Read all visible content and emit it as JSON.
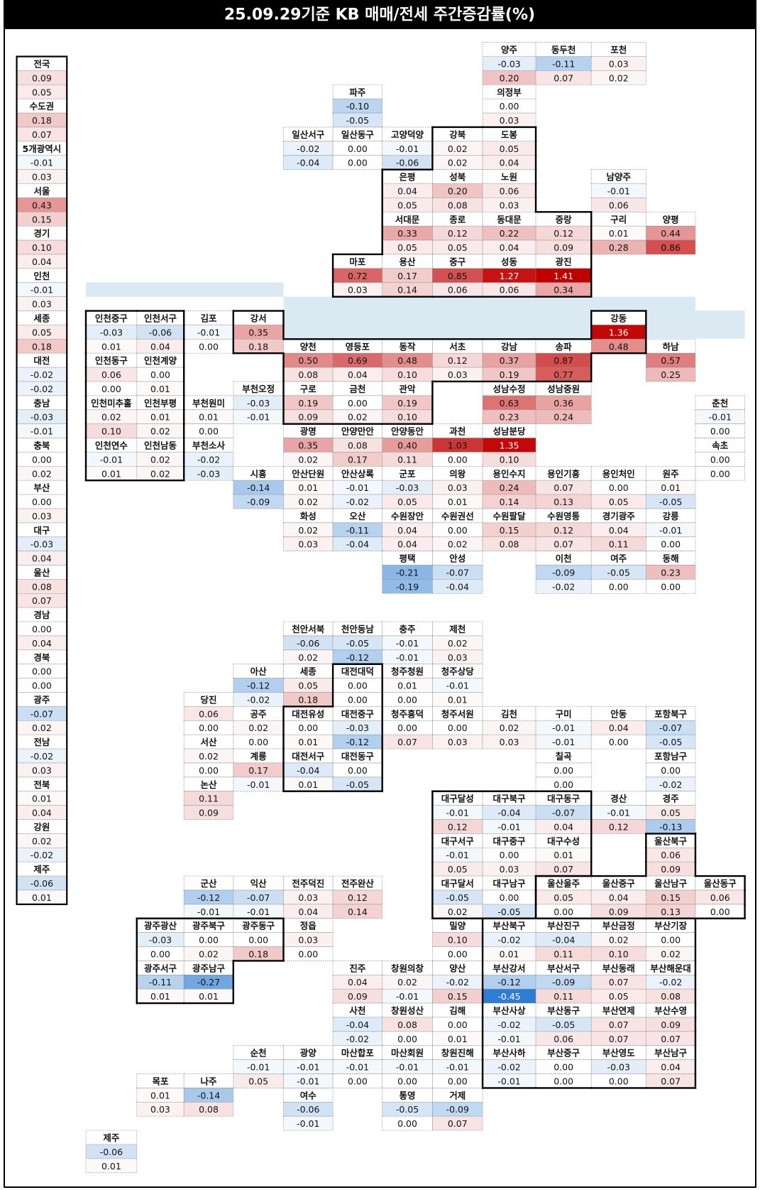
{
  "header": {
    "title": "25.09.29기준 KB 매매/전세 주간증감률(%)"
  },
  "summary": [
    [
      "전국",
      "0.09",
      "0.05"
    ],
    [
      "수도권",
      "0.18",
      "0.07"
    ],
    [
      "5개광역시",
      "-0.01",
      "0.03"
    ],
    [
      "서울",
      "0.43",
      "0.15"
    ],
    [
      "경기",
      "0.10",
      "0.04"
    ],
    [
      "인천",
      "-0.01",
      "0.03"
    ],
    [
      "세종",
      "0.05",
      "0.18"
    ],
    [
      "대전",
      "-0.02",
      "-0.02"
    ],
    [
      "충남",
      "-0.03",
      "-0.01"
    ],
    [
      "충북",
      "0.00",
      "0.02"
    ],
    [
      "부산",
      "0.00",
      "0.03"
    ],
    [
      "대구",
      "-0.03",
      "0.04"
    ],
    [
      "울산",
      "0.08",
      "0.07"
    ],
    [
      "경남",
      "0.00",
      "0.04"
    ],
    [
      "경북",
      "0.00",
      "0.00"
    ],
    [
      "광주",
      "-0.07",
      "0.02"
    ],
    [
      "전남",
      "-0.02",
      "0.03"
    ],
    [
      "전북",
      "0.01",
      "0.04"
    ],
    [
      "강원",
      "0.02",
      "-0.02"
    ],
    [
      "제주",
      "-0.06",
      "0.01"
    ]
  ],
  "regions": [
    [
      "양주",
      "-0.03",
      "0.20"
    ],
    [
      "동두천",
      "-0.11",
      "0.07"
    ],
    [
      "포천",
      "0.03",
      "0.02"
    ],
    [
      "파주",
      "-0.10",
      "-0.05"
    ],
    [
      "의정부",
      "0.00",
      "0.03"
    ],
    [
      "일산서구",
      "-0.02",
      "-0.04"
    ],
    [
      "일산동구",
      "0.00",
      "0.00"
    ],
    [
      "고양덕양",
      "-0.01",
      "-0.06"
    ],
    [
      "강북",
      "0.02",
      "0.02"
    ],
    [
      "도봉",
      "0.05",
      "0.04"
    ],
    [
      "은평",
      "0.04",
      "0.05"
    ],
    [
      "성북",
      "0.20",
      "0.08"
    ],
    [
      "노원",
      "0.06",
      "0.03"
    ],
    [
      "남양주",
      "-0.01",
      "0.06"
    ],
    [
      "서대문",
      "0.33",
      "0.05"
    ],
    [
      "종로",
      "0.12",
      "0.05"
    ],
    [
      "동대문",
      "0.22",
      "0.04"
    ],
    [
      "중랑",
      "0.12",
      "0.09"
    ],
    [
      "구리",
      "0.01",
      "0.28"
    ],
    [
      "양평",
      "0.44",
      "0.86"
    ],
    [
      "마포",
      "0.72",
      "0.03"
    ],
    [
      "용산",
      "0.17",
      "0.14"
    ],
    [
      "중구",
      "0.85",
      "0.06"
    ],
    [
      "성동",
      "1.27",
      "0.06"
    ],
    [
      "광진",
      "1.41",
      "0.34"
    ],
    [
      "인천중구",
      "-0.03",
      "0.01"
    ],
    [
      "인천서구",
      "-0.06",
      "0.04"
    ],
    [
      "김포",
      "-0.01",
      "0.00"
    ],
    [
      "강서",
      "0.35",
      "0.18"
    ],
    [
      "강동",
      "1.36",
      "0.48"
    ],
    [
      "양천",
      "0.50",
      "0.08"
    ],
    [
      "영등포",
      "0.69",
      "0.04"
    ],
    [
      "동작",
      "0.48",
      "0.10"
    ],
    [
      "서초",
      "0.12",
      "0.03"
    ],
    [
      "강남",
      "0.37",
      "0.19"
    ],
    [
      "송파",
      "0.87",
      "0.77"
    ],
    [
      "하남",
      "0.57",
      "0.25"
    ],
    [
      "인천동구",
      "0.06",
      "0.00"
    ],
    [
      "인천계양",
      "0.00",
      "0.01"
    ],
    [
      "부천오정",
      "-0.03",
      "-0.01"
    ],
    [
      "구로",
      "0.19",
      "0.09"
    ],
    [
      "금천",
      "0.00",
      "0.02"
    ],
    [
      "관악",
      "0.19",
      "0.10"
    ],
    [
      "성남수정",
      "0.63",
      "0.23"
    ],
    [
      "성남중원",
      "0.36",
      "0.24"
    ],
    [
      "인천미추홀",
      "0.02",
      "0.10"
    ],
    [
      "인천부평",
      "0.01",
      "0.02"
    ],
    [
      "부천원미",
      "0.01",
      "0.00"
    ],
    [
      "춘천",
      "-0.01",
      "0.00"
    ],
    [
      "광명",
      "0.35",
      "0.02"
    ],
    [
      "안양만안",
      "0.08",
      "0.17"
    ],
    [
      "안양동안",
      "0.40",
      "0.11"
    ],
    [
      "과천",
      "1.03",
      "0.00"
    ],
    [
      "성남분당",
      "1.35",
      "0.10"
    ],
    [
      "인천연수",
      "-0.01",
      "0.01"
    ],
    [
      "인천남동",
      "0.02",
      "0.02"
    ],
    [
      "부천소사",
      "-0.02",
      "-0.03"
    ],
    [
      "속초",
      "0.00",
      "0.00"
    ],
    [
      "시흥",
      "-0.14",
      "-0.09"
    ],
    [
      "안산단원",
      "0.01",
      "0.02"
    ],
    [
      "안산상록",
      "-0.01",
      "-0.02"
    ],
    [
      "군포",
      "-0.03",
      "0.05"
    ],
    [
      "의왕",
      "0.03",
      "0.01"
    ],
    [
      "용인수지",
      "0.24",
      "0.14"
    ],
    [
      "용인기흥",
      "0.07",
      "0.13"
    ],
    [
      "용인처인",
      "0.00",
      "0.05"
    ],
    [
      "원주",
      "0.01",
      "-0.05"
    ],
    [
      "화성",
      "0.02",
      "0.03"
    ],
    [
      "오산",
      "-0.11",
      "-0.04"
    ],
    [
      "수원장안",
      "0.04",
      "0.04"
    ],
    [
      "수원권선",
      "0.00",
      "0.02"
    ],
    [
      "수원팔달",
      "0.15",
      "0.08"
    ],
    [
      "수원영통",
      "0.12",
      "0.07"
    ],
    [
      "경기광주",
      "0.04",
      "0.11"
    ],
    [
      "강릉",
      "-0.01",
      "0.00"
    ],
    [
      "평택",
      "-0.21",
      "-0.19"
    ],
    [
      "안성",
      "-0.07",
      "-0.04"
    ],
    [
      "이천",
      "-0.09",
      "-0.02"
    ],
    [
      "여주",
      "-0.05",
      "0.00"
    ],
    [
      "동해",
      "0.23",
      "0.00"
    ],
    [
      "천안서북",
      "-0.06",
      "0.02"
    ],
    [
      "천안동남",
      "-0.05",
      "-0.12"
    ],
    [
      "충주",
      "-0.01",
      "-0.01"
    ],
    [
      "제천",
      "0.02",
      "0.03"
    ],
    [
      "아산",
      "-0.12",
      "-0.02"
    ],
    [
      "세종",
      "0.05",
      "0.18"
    ],
    [
      "대전대덕",
      "0.00",
      "0.00"
    ],
    [
      "청주청원",
      "0.01",
      "0.00"
    ],
    [
      "청주상당",
      "-0.01",
      "0.01"
    ],
    [
      "당진",
      "0.06",
      "0.00"
    ],
    [
      "공주",
      "0.02",
      "0.00"
    ],
    [
      "대전유성",
      "0.00",
      "0.01"
    ],
    [
      "대전중구",
      "-0.03",
      "-0.12"
    ],
    [
      "청주흥덕",
      "0.00",
      "0.07"
    ],
    [
      "청주서원",
      "0.00",
      "0.03"
    ],
    [
      "김천",
      "0.02",
      "0.03"
    ],
    [
      "구미",
      "-0.01",
      "-0.01"
    ],
    [
      "안동",
      "0.04",
      "0.00"
    ],
    [
      "포항북구",
      "-0.07",
      "-0.05"
    ],
    [
      "서산",
      "0.02",
      "0.00"
    ],
    [
      "계룡",
      "0.17",
      "-0.01"
    ],
    [
      "대전서구",
      "-0.04",
      "0.01"
    ],
    [
      "대전동구",
      "0.00",
      "-0.05"
    ],
    [
      "칠곡",
      "0.00",
      "0.00"
    ],
    [
      "포항남구",
      "0.00",
      "-0.02"
    ],
    [
      "논산",
      "0.11",
      "0.09"
    ],
    [
      "대구달성",
      "-0.01",
      "0.12"
    ],
    [
      "대구북구",
      "-0.04",
      "-0.01"
    ],
    [
      "대구동구",
      "-0.07",
      "0.04"
    ],
    [
      "경산",
      "-0.01",
      "0.12"
    ],
    [
      "경주",
      "0.05",
      "-0.13"
    ],
    [
      "대구서구",
      "-0.01",
      "0.05"
    ],
    [
      "대구중구",
      "0.00",
      "0.03"
    ],
    [
      "대구수성",
      "0.01",
      "0.07"
    ],
    [
      "울산북구",
      "0.06",
      "0.09"
    ],
    [
      "군산",
      "-0.12",
      "-0.01"
    ],
    [
      "익산",
      "-0.07",
      "-0.01"
    ],
    [
      "전주덕진",
      "0.03",
      "0.04"
    ],
    [
      "전주완산",
      "0.12",
      "0.14"
    ],
    [
      "대구달서",
      "-0.05",
      "0.02"
    ],
    [
      "대구남구",
      "0.00",
      "-0.05"
    ],
    [
      "울산울주",
      "0.05",
      "0.00"
    ],
    [
      "울산중구",
      "0.04",
      "0.09"
    ],
    [
      "울산남구",
      "0.15",
      "0.13"
    ],
    [
      "울산동구",
      "0.06",
      "0.00"
    ],
    [
      "광주광산",
      "-0.03",
      "0.00"
    ],
    [
      "광주북구",
      "0.00",
      "0.02"
    ],
    [
      "광주동구",
      "0.00",
      "0.18"
    ],
    [
      "정읍",
      "0.03",
      "0.00"
    ],
    [
      "밀양",
      "0.10",
      "0.00"
    ],
    [
      "부산북구",
      "-0.02",
      "0.01"
    ],
    [
      "부산진구",
      "-0.04",
      "0.11"
    ],
    [
      "부산금정",
      "0.02",
      "0.10"
    ],
    [
      "부산기장",
      "0.00",
      "0.02"
    ],
    [
      "광주서구",
      "-0.11",
      "0.01"
    ],
    [
      "광주남구",
      "-0.27",
      "0.01"
    ],
    [
      "진주",
      "0.04",
      "0.09"
    ],
    [
      "창원의창",
      "0.02",
      "-0.01"
    ],
    [
      "양산",
      "-0.02",
      "0.15"
    ],
    [
      "부산강서",
      "-0.12",
      "-0.45"
    ],
    [
      "부산서구",
      "-0.09",
      "0.11"
    ],
    [
      "부산동래",
      "0.07",
      "0.05"
    ],
    [
      "부산해운대",
      "-0.02",
      "0.08"
    ],
    [
      "사천",
      "-0.04",
      "-0.02"
    ],
    [
      "창원성산",
      "0.08",
      "0.00"
    ],
    [
      "김해",
      "0.00",
      "0.01"
    ],
    [
      "부산사상",
      "-0.02",
      "-0.01"
    ],
    [
      "부산동구",
      "-0.05",
      "0.06"
    ],
    [
      "부산연제",
      "0.07",
      "0.07"
    ],
    [
      "부산수영",
      "0.09",
      "0.07"
    ],
    [
      "순천",
      "-0.01",
      "0.05"
    ],
    [
      "광양",
      "-0.01",
      "-0.01"
    ],
    [
      "마산합포",
      "-0.01",
      "0.00"
    ],
    [
      "마산회원",
      "-0.01",
      "0.00"
    ],
    [
      "창원진해",
      "-0.01",
      "0.00"
    ],
    [
      "부산사하",
      "-0.02",
      "-0.01"
    ],
    [
      "부산중구",
      "0.00",
      "0.00"
    ],
    [
      "부산영도",
      "-0.03",
      "0.00"
    ],
    [
      "부산남구",
      "0.04",
      "0.07"
    ],
    [
      "목포",
      "0.01",
      "0.03"
    ],
    [
      "나주",
      "-0.14",
      "0.08"
    ],
    [
      "여수",
      "-0.06",
      "-0.01"
    ],
    [
      "통영",
      "-0.05",
      "0.00"
    ],
    [
      "거제",
      "-0.09",
      "0.07"
    ],
    [
      "제주",
      "-0.06",
      "0.01"
    ]
  ]
}
